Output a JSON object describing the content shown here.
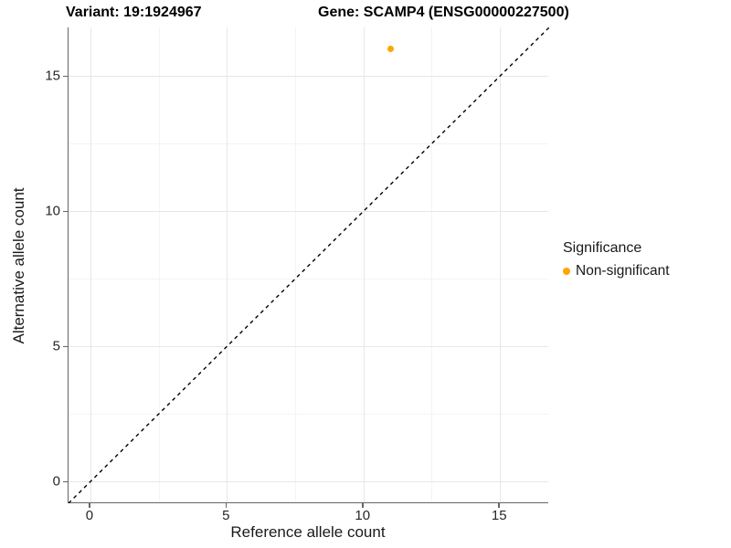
{
  "header": {
    "variant_title": "Variant: 19:1924967",
    "gene_title": "Gene: SCAMP4 (ENSG00000227500)"
  },
  "chart_data": {
    "type": "scatter",
    "title": "Variant: 19:1924967   Gene: SCAMP4 (ENSG00000227500)",
    "xlabel": "Reference allele count",
    "ylabel": "Alternative allele count",
    "xlim": [
      -0.8,
      16.8
    ],
    "ylim": [
      -0.8,
      16.8
    ],
    "x_ticks": [
      0,
      5,
      10,
      15
    ],
    "y_ticks": [
      0,
      5,
      10,
      15
    ],
    "x_minor_ticks": [
      2.5,
      7.5,
      12.5
    ],
    "y_minor_ticks": [
      2.5,
      7.5,
      12.5
    ],
    "grid": "major+minor",
    "points": [
      {
        "x": 11,
        "y": 16,
        "series": "Non-significant",
        "color": "#FFA500"
      }
    ],
    "identity_line": {
      "slope": 1,
      "intercept": 0,
      "style": "dashed",
      "color": "#000000"
    },
    "legend": {
      "position": "right",
      "title": "Significance",
      "items": [
        {
          "label": "Non-significant",
          "color": "#FFA500",
          "marker": "circle"
        }
      ]
    }
  },
  "colors": {
    "background": "#FFFFFF",
    "axis_line": "#656565",
    "tick_label": "#262626",
    "grid_major": "#E7E7E7",
    "grid_minor": "#F4F4F4",
    "point": "#FFA500"
  }
}
